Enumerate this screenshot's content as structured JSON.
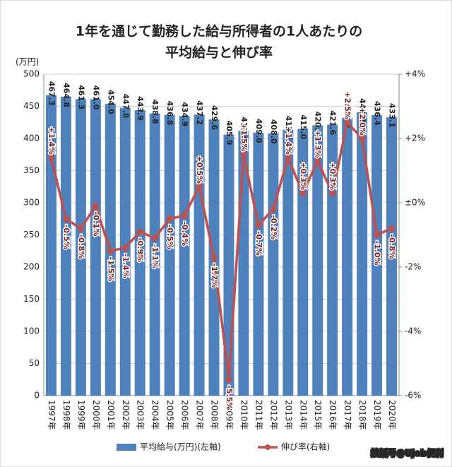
{
  "chart_data": {
    "type": "bar-line",
    "title": [
      "1年を通じて勤務した給与所得者の1人あたりの",
      "平均給与と伸び率"
    ],
    "y_label": "(万円)",
    "categories": [
      "1997年",
      "1998年",
      "1999年",
      "2000年",
      "2001年",
      "2002年",
      "2003年",
      "2004年",
      "2005年",
      "2006年",
      "2007年",
      "2008年",
      "2009年",
      "2010年",
      "2011年",
      "2012年",
      "2013年",
      "2014年",
      "2015年",
      "2016年",
      "2017年",
      "2018年",
      "2019年",
      "2020年"
    ],
    "series": [
      {
        "name": "平均給与(万円)(左軸)",
        "type": "bar",
        "color": "#4f81bd",
        "values": [
          467.3,
          464.8,
          461.3,
          461.0,
          454.0,
          447.8,
          443.9,
          438.8,
          436.8,
          434.9,
          437.2,
          429.6,
          405.9,
          412.0,
          409.0,
          408.0,
          413.6,
          415.0,
          420.4,
          421.6,
          432.2,
          440.7,
          436.4,
          433.1
        ],
        "value_labels": [
          "467.3",
          "464.8",
          "461.3",
          "461.0",
          "454.0",
          "447.8",
          "443.9",
          "438.8",
          "436.8",
          "434.9",
          "437.2",
          "429.6",
          "405.9",
          "412.0",
          "409.0",
          "408.0",
          "413.6",
          "415.0",
          "420.4",
          "421.6",
          "432.2",
          "440.7",
          "436.4",
          "433.1"
        ]
      },
      {
        "name": "伸び率(右軸)",
        "type": "line",
        "axis": "y2",
        "color": "#c0504d",
        "values": [
          1.4,
          -0.5,
          -0.8,
          -0.1,
          -1.5,
          -1.4,
          -0.9,
          -1.1,
          -0.5,
          -0.4,
          0.5,
          -1.7,
          -5.5,
          1.5,
          -0.7,
          -0.2,
          1.4,
          0.3,
          1.3,
          0.3,
          2.5,
          2.0,
          -1.0,
          -0.8
        ],
        "value_labels": [
          "+1.4%",
          "-0.5%",
          "-0.8%",
          "-0.1%",
          "-1.5%",
          "-1.4%",
          "-0.9%",
          "-1.1%",
          "-0.5%",
          "-0.4%",
          "+0.5%",
          "-1.7%",
          "-5.5%",
          "+1.5%",
          "-0.7%",
          "-0.2%",
          "+1.4%",
          "+0.3%",
          "+1.3%",
          "+0.3%",
          "+2.5%",
          "+2.0%",
          "-1.0%",
          "-0.8%"
        ]
      }
    ],
    "ylim": [
      0,
      500
    ],
    "yticks": [
      0,
      50,
      100,
      150,
      200,
      250,
      300,
      350,
      400,
      450,
      500
    ],
    "y2lim": [
      -6,
      4
    ],
    "y2ticks": [
      {
        "value": -6,
        "label": "-6%"
      },
      {
        "value": -4,
        "label": "-4%"
      },
      {
        "value": -2,
        "label": "-2%"
      },
      {
        "value": 0,
        "label": "±0%"
      },
      {
        "value": 2,
        "label": "+2%"
      },
      {
        "value": 4,
        "label": "+4%"
      }
    ],
    "grid": true,
    "legend": "bottom",
    "watermark": "搜狐号@Ujob便利"
  }
}
